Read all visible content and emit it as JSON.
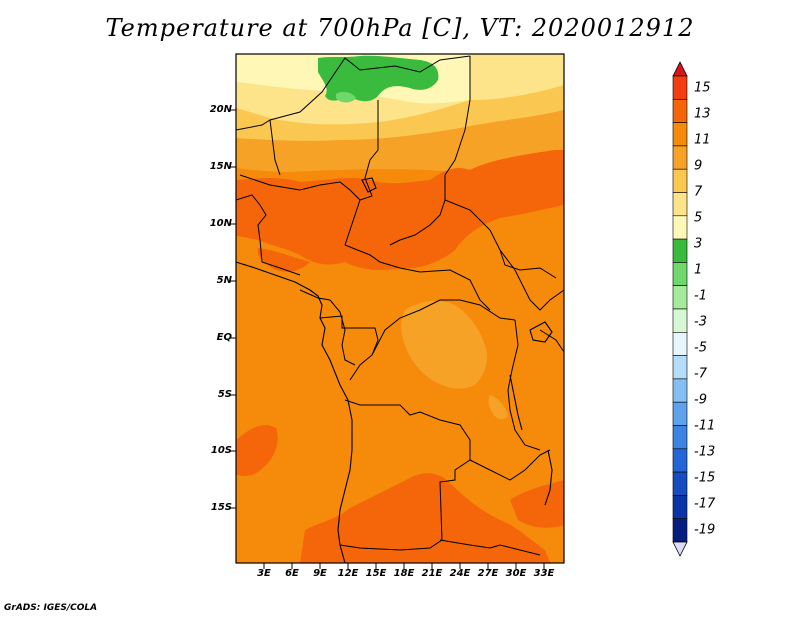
{
  "title": "Temperature at 700hPa [C], VT: 2020012912",
  "footer": "GrADS: IGES/COLA",
  "y_axis": {
    "labels": [
      "20N",
      "15N",
      "10N",
      "5N",
      "EQ",
      "5S",
      "10S",
      "15S"
    ]
  },
  "x_axis": {
    "labels": [
      "3E",
      "6E",
      "9E",
      "12E",
      "15E",
      "18E",
      "21E",
      "24E",
      "27E",
      "30E",
      "33E"
    ]
  },
  "colorbar": {
    "labels": [
      "15",
      "13",
      "11",
      "9",
      "7",
      "5",
      "3",
      "1",
      "-1",
      "-3",
      "-5",
      "-7",
      "-9",
      "-11",
      "-13",
      "-15",
      "-17",
      "-19"
    ],
    "colors": [
      "#d7141c",
      "#f23d12",
      "#f5660a",
      "#f58a0b",
      "#f6a226",
      "#fac851",
      "#fde38a",
      "#fff7b6",
      "#3bbb3e",
      "#6ed86a",
      "#a5eb9c",
      "#d6f8d4",
      "#e6f6fc",
      "#b5dcf8",
      "#86c0f2",
      "#5fa2ec",
      "#3c84e4",
      "#2466d6",
      "#154cc0",
      "#0b35a4",
      "#061e80",
      "#dcdcf8"
    ]
  },
  "map": {
    "colors": {
      "base": "#f58a0b",
      "warm": "#f5660a",
      "light": "#f6a226",
      "pale": "#fac851",
      "cream": "#fde38a",
      "ivory": "#fff7b6",
      "green": "#3bbb3e",
      "light_green": "#6ed86a"
    }
  }
}
